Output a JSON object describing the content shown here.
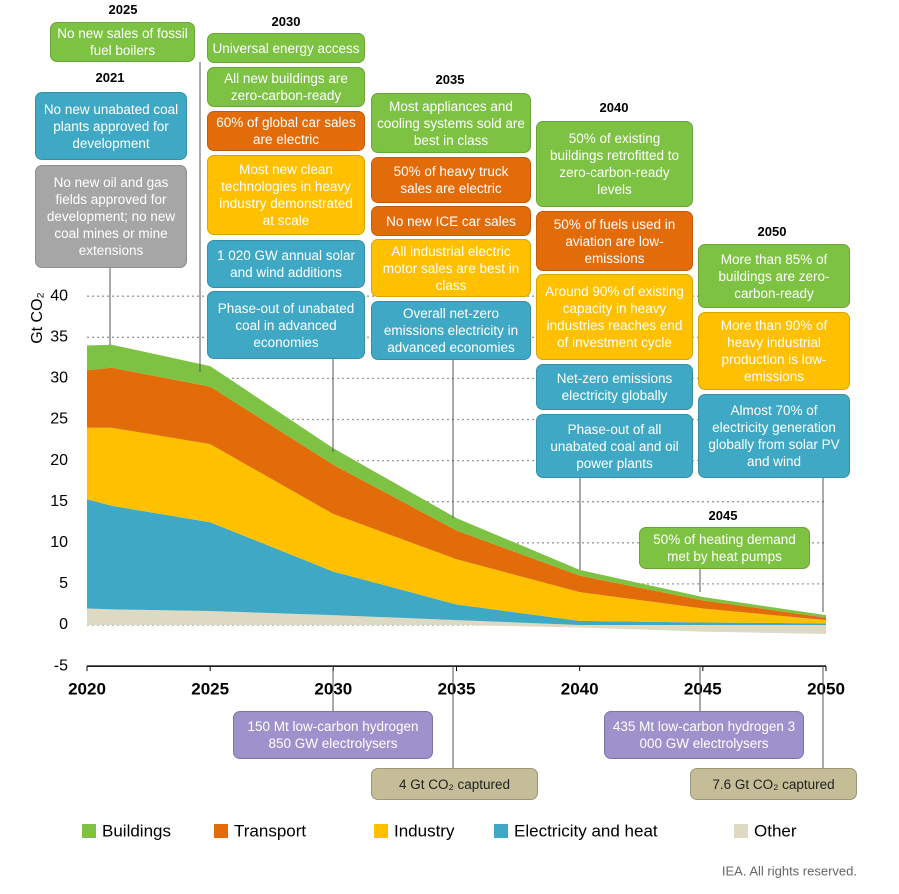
{
  "chart_data": {
    "type": "area",
    "stacked": true,
    "y_label": "Gt CO₂",
    "x": [
      2020,
      2021,
      2025,
      2030,
      2035,
      2040,
      2045,
      2050
    ],
    "xlim": [
      2020,
      2050
    ],
    "xticks": [
      2020,
      2025,
      2030,
      2035,
      2040,
      2045,
      2050
    ],
    "ylim": [
      -5,
      40
    ],
    "yticks": [
      -5,
      0,
      5,
      10,
      15,
      20,
      25,
      30,
      35,
      40
    ],
    "grid": true,
    "legend": "bottom",
    "series": [
      {
        "name": "Other",
        "color": "#ddd9c3",
        "values": [
          2,
          1.9,
          1.7,
          1.2,
          0.6,
          -0.3,
          -0.8,
          -1.1
        ]
      },
      {
        "name": "Electricity and heat",
        "color": "#3fa9c5",
        "values": [
          13.3,
          12.6,
          10.8,
          5.3,
          1.9,
          0.5,
          0.3,
          0.2
        ]
      },
      {
        "name": "Industry",
        "color": "#ffc000",
        "values": [
          8.7,
          9.5,
          9.5,
          7,
          5.5,
          3.5,
          1.7,
          0.4
        ]
      },
      {
        "name": "Transport",
        "color": "#e36c0a",
        "values": [
          7,
          7.3,
          7,
          6,
          3.5,
          2,
          1,
          0.3
        ]
      },
      {
        "name": "Buildings",
        "color": "#7dc242",
        "values": [
          3,
          2.8,
          2.5,
          2,
          1.5,
          0.7,
          0.4,
          0.3
        ]
      }
    ],
    "legend_order": [
      4,
      3,
      2,
      1,
      0
    ],
    "milestones": [
      {
        "year": "2025",
        "items": [
          {
            "text": "No new sales of fossil fuel boilers",
            "color": "#7dc242"
          }
        ]
      },
      {
        "year": "2021",
        "items": [
          {
            "text": "No new unabated coal plants approved for development",
            "color": "#3fa9c5"
          },
          {
            "text": "No new oil and gas fields approved for development; no new coal mines or mine extensions",
            "color": "#a6a6a6"
          }
        ]
      },
      {
        "year": "2030",
        "items": [
          {
            "text": "Universal energy access",
            "color": "#7dc242"
          },
          {
            "text": "All new buildings are zero-carbon-ready",
            "color": "#7dc242"
          },
          {
            "text": "60% of global car sales are electric",
            "color": "#e36c0a"
          },
          {
            "text": "Most new clean technologies in heavy industry demonstrated at scale",
            "color": "#ffc000"
          },
          {
            "text": "1 020 GW annual solar and wind additions",
            "color": "#3fa9c5"
          },
          {
            "text": "Phase-out of unabated coal in advanced economies",
            "color": "#3fa9c5"
          }
        ]
      },
      {
        "year": "2035",
        "items": [
          {
            "text": "Most appliances and cooling systems sold are best in class",
            "color": "#7dc242"
          },
          {
            "text": "50% of heavy truck sales are electric",
            "color": "#e36c0a"
          },
          {
            "text": "No new ICE car sales",
            "color": "#e36c0a"
          },
          {
            "text": "All industrial electric motor sales are best in class",
            "color": "#ffc000"
          },
          {
            "text": "Overall net-zero emissions electricity in advanced economies",
            "color": "#3fa9c5"
          }
        ]
      },
      {
        "year": "2040",
        "items": [
          {
            "text": "50% of existing buildings retrofitted to zero-carbon-ready levels",
            "color": "#7dc242"
          },
          {
            "text": "50% of fuels used in aviation are low-emissions",
            "color": "#e36c0a"
          },
          {
            "text": "Around 90% of existing capacity in heavy industries reaches end of investment cycle",
            "color": "#ffc000"
          },
          {
            "text": "Net-zero emissions electricity globally",
            "color": "#3fa9c5"
          },
          {
            "text": "Phase-out of all unabated coal and oil power plants",
            "color": "#3fa9c5"
          }
        ]
      },
      {
        "year": "2050",
        "items": [
          {
            "text": "More than 85% of buildings are zero-carbon-ready",
            "color": "#7dc242"
          },
          {
            "text": "More than 90% of heavy industrial production is low-emissions",
            "color": "#ffc000"
          },
          {
            "text": "Almost 70% of electricity generation globally from solar PV and wind",
            "color": "#3fa9c5"
          }
        ]
      },
      {
        "year": "2045",
        "items": [
          {
            "text": "50% of heating demand met by heat pumps",
            "color": "#7dc242"
          }
        ]
      }
    ],
    "bottom_notes": [
      {
        "text": "150 Mt low-carbon hydrogen 850 GW electrolysers",
        "color": "#9e92cc"
      },
      {
        "text": "4 Gt CO₂ captured",
        "color": "#c4bd97"
      },
      {
        "text": "435 Mt low-carbon hydrogen 3 000 GW electrolysers",
        "color": "#9e92cc"
      },
      {
        "text": "7.6 Gt CO₂ captured",
        "color": "#c4bd97"
      }
    ],
    "source": "IEA. All rights reserved."
  }
}
